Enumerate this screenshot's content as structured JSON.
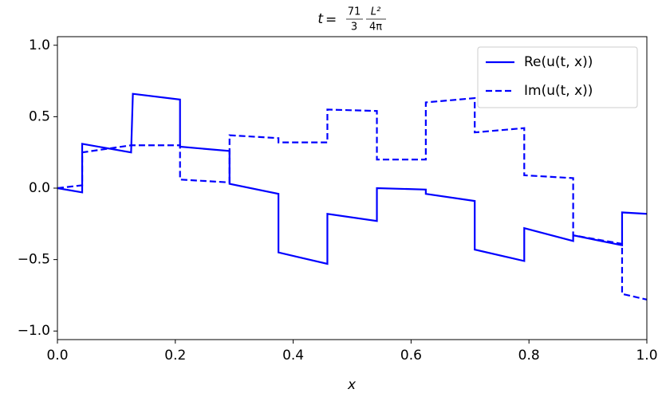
{
  "chart_data": {
    "type": "line",
    "title": {
      "variable": "t",
      "equals": "=",
      "fraction1": {
        "num": "71",
        "den": "3"
      },
      "fraction2": {
        "num": "L²",
        "den": "4π"
      }
    },
    "xlabel": "x",
    "xlim": [
      0,
      1
    ],
    "ylim": [
      -1.06,
      1.06
    ],
    "xticks": [
      {
        "value": 0,
        "label": "0.0"
      },
      0.2,
      0.4,
      0.6,
      0.8,
      {
        "value": 1,
        "label": "1.0"
      }
    ],
    "yticks": [
      {
        "value": -1,
        "label": "−1.0"
      },
      {
        "value": -0.5,
        "label": "−0.5"
      },
      {
        "value": 0,
        "label": "0.0"
      },
      0.5,
      {
        "value": 1,
        "label": "1.0"
      }
    ],
    "legend": "upper right",
    "series": [
      {
        "name": "Re(u(t, x))",
        "color": "#0000ff",
        "dashed": false,
        "x": [
          0,
          0.042,
          0.042,
          0.125,
          0.128,
          0.208,
          0.208,
          0.292,
          0.292,
          0.375,
          0.375,
          0.458,
          0.458,
          0.542,
          0.542,
          0.625,
          0.625,
          0.708,
          0.708,
          0.792,
          0.792,
          0.875,
          0.875,
          0.958,
          0.958,
          1.0
        ],
        "values": [
          0,
          -0.03,
          0.31,
          0.25,
          0.66,
          0.62,
          0.29,
          0.26,
          0.03,
          -0.04,
          -0.45,
          -0.53,
          -0.18,
          -0.23,
          0.0,
          -0.01,
          -0.04,
          -0.09,
          -0.43,
          -0.51,
          -0.28,
          -0.37,
          -0.33,
          -0.4,
          -0.17,
          -0.18
        ]
      },
      {
        "name": "Im(u(t, x))",
        "color": "#0000ff",
        "dashed": true,
        "x": [
          0,
          0.042,
          0.042,
          0.125,
          0.208,
          0.208,
          0.292,
          0.292,
          0.375,
          0.375,
          0.458,
          0.458,
          0.542,
          0.542,
          0.625,
          0.625,
          0.708,
          0.708,
          0.792,
          0.792,
          0.875,
          0.875,
          0.958,
          0.958,
          1.0
        ],
        "values": [
          0,
          0.02,
          0.25,
          0.3,
          0.3,
          0.06,
          0.04,
          0.37,
          0.35,
          0.32,
          0.32,
          0.55,
          0.54,
          0.2,
          0.2,
          0.6,
          0.63,
          0.39,
          0.42,
          0.09,
          0.07,
          -0.33,
          -0.39,
          -0.74,
          -0.78
        ]
      }
    ]
  }
}
